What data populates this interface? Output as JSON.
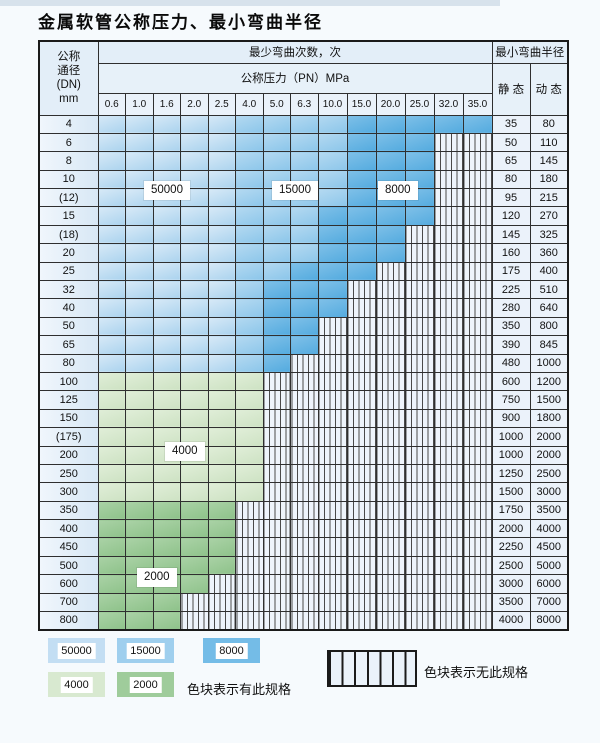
{
  "title": "金属软管公称压力、最小弯曲半径",
  "header": {
    "dn_lines": [
      "公称",
      "通径",
      "(DN)",
      "mm"
    ],
    "bend_cycles": "最少弯曲次数，次",
    "pressure": "公称压力（PN）MPa",
    "pressures": [
      "0.6",
      "1.0",
      "1.6",
      "2.0",
      "2.5",
      "4.0",
      "5.0",
      "6.3",
      "10.0",
      "15.0",
      "20.0",
      "25.0",
      "32.0",
      "35.0"
    ],
    "radius": "最小弯曲半径",
    "static": "静 态",
    "dynamic": "动 态"
  },
  "zone_codes": {
    "L": "50000次",
    "M": "15000次",
    "D": "8000次",
    "F": "4000次",
    "T": "2000次",
    "N": "无此规格"
  },
  "rows": [
    {
      "dn": "4",
      "cells": "LLLLLMMMMDDDDD",
      "static": "35",
      "dynamic": "80"
    },
    {
      "dn": "6",
      "cells": "LLLLLMMMMDDDNN",
      "static": "50",
      "dynamic": "110"
    },
    {
      "dn": "8",
      "cells": "LLLLLMMMMDDDNN",
      "static": "65",
      "dynamic": "145"
    },
    {
      "dn": "10",
      "cells": "LLLLLMMMMDDDNN",
      "static": "80",
      "dynamic": "180"
    },
    {
      "dn": "(12)",
      "cells": "LLLLLMMMMDDDNN",
      "static": "95",
      "dynamic": "215"
    },
    {
      "dn": "15",
      "cells": "LLLLLMMMDDDDNN",
      "static": "120",
      "dynamic": "270"
    },
    {
      "dn": "(18)",
      "cells": "LLLLLMMMDDDNNN",
      "static": "145",
      "dynamic": "325"
    },
    {
      "dn": "20",
      "cells": "LLLLLMMMDDDNNN",
      "static": "160",
      "dynamic": "360"
    },
    {
      "dn": "25",
      "cells": "LLLLLMMDDDNNNN",
      "static": "175",
      "dynamic": "400"
    },
    {
      "dn": "32",
      "cells": "LLLLLMDDDNNNNN",
      "static": "225",
      "dynamic": "510"
    },
    {
      "dn": "40",
      "cells": "LLLLLMDDDNNNNN",
      "static": "280",
      "dynamic": "640"
    },
    {
      "dn": "50",
      "cells": "LLLLLMDDNNNNNN",
      "static": "350",
      "dynamic": "800"
    },
    {
      "dn": "65",
      "cells": "LLLLLMDDNNNNNN",
      "static": "390",
      "dynamic": "845"
    },
    {
      "dn": "80",
      "cells": "LLLLLMDNNNNNNN",
      "static": "480",
      "dynamic": "1000"
    },
    {
      "dn": "100",
      "cells": "FFFFFFNNNNNNNN",
      "static": "600",
      "dynamic": "1200"
    },
    {
      "dn": "125",
      "cells": "FFFFFFNNNNNNNN",
      "static": "750",
      "dynamic": "1500"
    },
    {
      "dn": "150",
      "cells": "FFFFFFNNNNNNNN",
      "static": "900",
      "dynamic": "1800"
    },
    {
      "dn": "(175)",
      "cells": "FFFFFFNNNNNNNN",
      "static": "1000",
      "dynamic": "2000"
    },
    {
      "dn": "200",
      "cells": "FFFFFFNNNNNNNN",
      "static": "1000",
      "dynamic": "2000"
    },
    {
      "dn": "250",
      "cells": "FFFFFFNNNNNNNN",
      "static": "1250",
      "dynamic": "2500"
    },
    {
      "dn": "300",
      "cells": "FFFFFFNNNNNNNN",
      "static": "1500",
      "dynamic": "3000"
    },
    {
      "dn": "350",
      "cells": "TTTTTNNNNNNNNN",
      "static": "1750",
      "dynamic": "3500"
    },
    {
      "dn": "400",
      "cells": "TTTTTNNNNNNNNN",
      "static": "2000",
      "dynamic": "4000"
    },
    {
      "dn": "450",
      "cells": "TTTTTNNNNNNNNN",
      "static": "2250",
      "dynamic": "4500"
    },
    {
      "dn": "500",
      "cells": "TTTTTNNNNNNNNN",
      "static": "2500",
      "dynamic": "5000"
    },
    {
      "dn": "600",
      "cells": "TTTTNNNNNNNNNN",
      "static": "3000",
      "dynamic": "6000"
    },
    {
      "dn": "700",
      "cells": "TTTNNNNNNNNNNN",
      "static": "3500",
      "dynamic": "7000"
    },
    {
      "dn": "800",
      "cells": "TTTNNNNNNNNNNN",
      "static": "4000",
      "dynamic": "8000"
    }
  ],
  "zone_labels": [
    {
      "text": "50000"
    },
    {
      "text": "15000"
    },
    {
      "text": "8000"
    },
    {
      "text": "4000"
    },
    {
      "text": "2000"
    }
  ],
  "legend": {
    "swatches": [
      {
        "value": "50000",
        "zone": "L"
      },
      {
        "value": "15000",
        "zone": "M"
      },
      {
        "value": "8000",
        "zone": "D"
      },
      {
        "value": "4000",
        "zone": "F"
      },
      {
        "value": "2000",
        "zone": "T"
      }
    ],
    "available_note": "色块表示有此规格",
    "unavailable_note": "色块表示无此规格"
  },
  "colors": {
    "blue_50000": "#abd3ee",
    "blue_15000": "#8cc6ea",
    "blue_8000": "#54abdf",
    "green_4000": "#cde2c3",
    "green_2000": "#8ec28a",
    "hatch_bg": "#eef4fb",
    "grid_line": "#2f2f2f"
  }
}
